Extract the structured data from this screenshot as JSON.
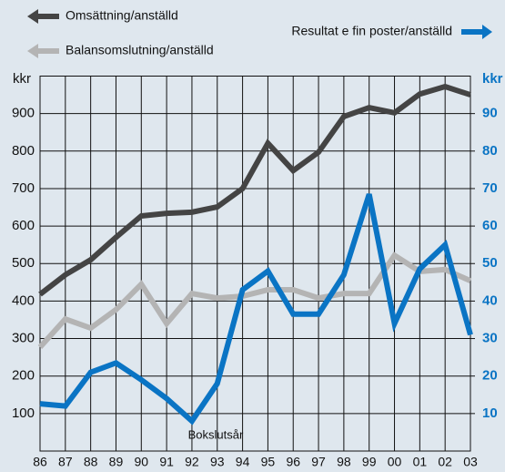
{
  "chart_data": {
    "type": "line",
    "categories": [
      "86",
      "87",
      "88",
      "89",
      "90",
      "91",
      "92",
      "93",
      "94",
      "95",
      "96",
      "97",
      "98",
      "99",
      "00",
      "01",
      "02",
      "03"
    ],
    "series": [
      {
        "name": "Omsättning/anställd",
        "color": "#444444",
        "values": [
          418,
          470,
          510,
          570,
          627,
          634,
          637,
          651,
          700,
          821,
          748,
          797,
          892,
          916,
          902,
          952,
          972,
          950
        ]
      },
      {
        "name": "Balansomslutning/anställd",
        "color": "#b4b4b4",
        "values": [
          277,
          352,
          328,
          377,
          445,
          340,
          420,
          408,
          413,
          430,
          430,
          408,
          420,
          420,
          522,
          479,
          484,
          454
        ]
      },
      {
        "name": "Resultat e fin poster/anställd",
        "color": "#0a74c4",
        "axis": "y2",
        "values": [
          12.6,
          12,
          21,
          23.5,
          19,
          14,
          8,
          18,
          43,
          48,
          36.5,
          36.5,
          47,
          68.5,
          34,
          48.6,
          55,
          31
        ]
      }
    ],
    "ylabel": "kkr",
    "y2label": "kkr",
    "annotation": "Bokslutsår",
    "ylim": [
      0,
      1000
    ],
    "yticks": [
      100,
      200,
      300,
      400,
      500,
      600,
      700,
      800,
      900
    ],
    "y2lim": [
      0,
      100
    ],
    "y2ticks": [
      10,
      20,
      30,
      40,
      50,
      60,
      70,
      80,
      90
    ],
    "grid": true
  }
}
